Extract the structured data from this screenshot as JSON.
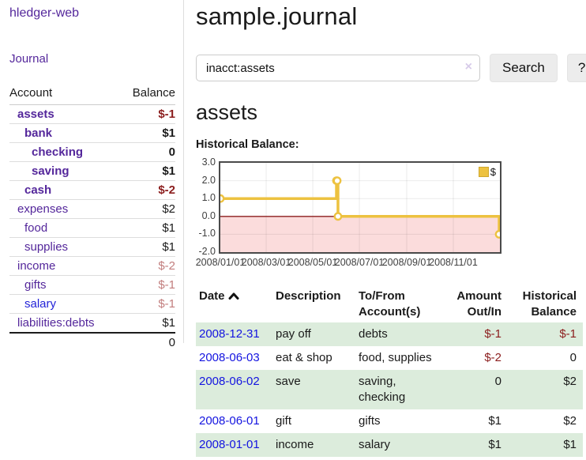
{
  "app": {
    "brand": "hledger-web",
    "nav_journal": "Journal"
  },
  "sidebar": {
    "accounts_header": {
      "account": "Account",
      "balance": "Balance"
    },
    "accounts": [
      {
        "name": "assets",
        "depth": 1,
        "bold": true,
        "balance": "$-1"
      },
      {
        "name": "bank",
        "depth": 2,
        "bold": true,
        "balance": "$1"
      },
      {
        "name": "checking",
        "depth": 3,
        "bold": true,
        "balance": "0"
      },
      {
        "name": "saving",
        "depth": 3,
        "bold": true,
        "balance": "$1"
      },
      {
        "name": "cash",
        "depth": 2,
        "bold": true,
        "balance": "$-2"
      },
      {
        "name": "expenses",
        "depth": 1,
        "bold": false,
        "balance": "$2"
      },
      {
        "name": "food",
        "depth": 2,
        "bold": false,
        "balance": "$1"
      },
      {
        "name": "supplies",
        "depth": 2,
        "bold": false,
        "balance": "$1"
      },
      {
        "name": "income",
        "depth": 1,
        "bold": false,
        "balance": "$-2"
      },
      {
        "name": "gifts",
        "depth": 2,
        "bold": false,
        "balance": "$-1"
      },
      {
        "name": "salary",
        "depth": 2,
        "bold": false,
        "balance": "$-1",
        "link_variant": "blue"
      },
      {
        "name": "liabilities:debts",
        "depth": 1,
        "bold": false,
        "balance": "$1"
      }
    ],
    "total": "0"
  },
  "header": {
    "title": "sample.journal"
  },
  "search": {
    "value": "inacct:assets",
    "clear_icon": "×",
    "button": "Search",
    "help_button": "?"
  },
  "account_page": {
    "title": "assets",
    "chart_label": "Historical Balance:"
  },
  "chart_data": {
    "type": "line",
    "style": "step",
    "title": "Historical Balance",
    "series": [
      {
        "name": "$",
        "color": "#edc240",
        "points": [
          {
            "date": "2008-01-01",
            "value": 1
          },
          {
            "date": "2008-06-01",
            "value": 2
          },
          {
            "date": "2008-06-02",
            "value": 2
          },
          {
            "date": "2008-06-03",
            "value": 0
          },
          {
            "date": "2008-12-31",
            "value": -1
          }
        ]
      }
    ],
    "ylim": [
      -2.0,
      3.0
    ],
    "yticks": [
      "3.0",
      "2.0",
      "1.0",
      "0.0",
      "-1.0",
      "-2.0"
    ],
    "xticks": [
      "2008/01/01",
      "2008/03/01",
      "2008/05/01",
      "2008/07/01",
      "2008/09/01",
      "2008/11/01"
    ],
    "x_start": "2008-01-01",
    "x_span_days": 366,
    "grid": true,
    "negative_fill": "#fbdcdc",
    "zero_line_color": "#8b1d1d",
    "legend": {
      "label": "$",
      "swatch_color": "#edc240",
      "position": "top-right"
    }
  },
  "register": {
    "columns": [
      "Date",
      "Description",
      "To/From Account(s)",
      "Amount Out/In",
      "Historical Balance"
    ],
    "sort_icon": "chevron-up-icon",
    "rows": [
      {
        "date": "2008-12-31",
        "description": "pay off",
        "accounts": "debts",
        "amount": "$-1",
        "balance": "$-1"
      },
      {
        "date": "2008-06-03",
        "description": "eat & shop",
        "accounts": "food, supplies",
        "amount": "$-2",
        "balance": "0"
      },
      {
        "date": "2008-06-02",
        "description": "save",
        "accounts": "saving, checking",
        "amount": "0",
        "balance": "$2"
      },
      {
        "date": "2008-06-01",
        "description": "gift",
        "accounts": "gifts",
        "amount": "$1",
        "balance": "$2"
      },
      {
        "date": "2008-01-01",
        "description": "income",
        "accounts": "salary",
        "amount": "$1",
        "balance": "$1"
      }
    ]
  }
}
